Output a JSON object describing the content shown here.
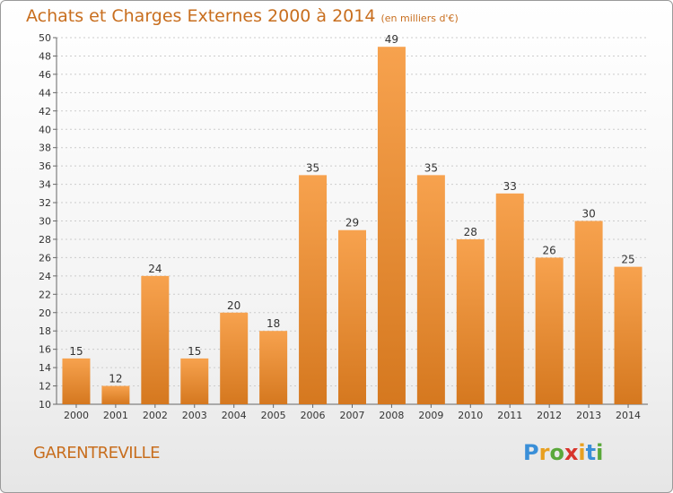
{
  "header": {
    "title": "Achats et Charges Externes 2000 à 2014",
    "subtitle": "(en milliers d'€)"
  },
  "footer": {
    "commune": "GARENTREVILLE",
    "logo_letters": [
      "P",
      "r",
      "o",
      "x",
      "i",
      "t",
      "i"
    ],
    "logo_colors": [
      "#3a8fd8",
      "#e8a020",
      "#5aa83a",
      "#d8342c",
      "#e8a020",
      "#3a8fd8",
      "#5aa83a"
    ]
  },
  "colors": {
    "accent": "#c86e1e",
    "bar_light": "#f7a24e",
    "bar_dark": "#d5781f"
  },
  "chart_data": {
    "type": "bar",
    "title": "Achats et Charges Externes 2000 à 2014",
    "subtitle": "(en milliers d'€)",
    "categories": [
      "2000",
      "2001",
      "2002",
      "2003",
      "2004",
      "2005",
      "2006",
      "2007",
      "2008",
      "2009",
      "2010",
      "2011",
      "2012",
      "2013",
      "2014"
    ],
    "values": [
      15,
      12,
      24,
      15,
      20,
      18,
      35,
      29,
      49,
      35,
      28,
      33,
      26,
      30,
      25
    ],
    "ylim": [
      10,
      50
    ],
    "yticks": [
      10,
      12,
      14,
      16,
      18,
      20,
      22,
      24,
      26,
      28,
      30,
      32,
      34,
      36,
      38,
      40,
      42,
      44,
      46,
      48,
      50
    ],
    "grid": true,
    "xlabel": "",
    "ylabel": ""
  }
}
